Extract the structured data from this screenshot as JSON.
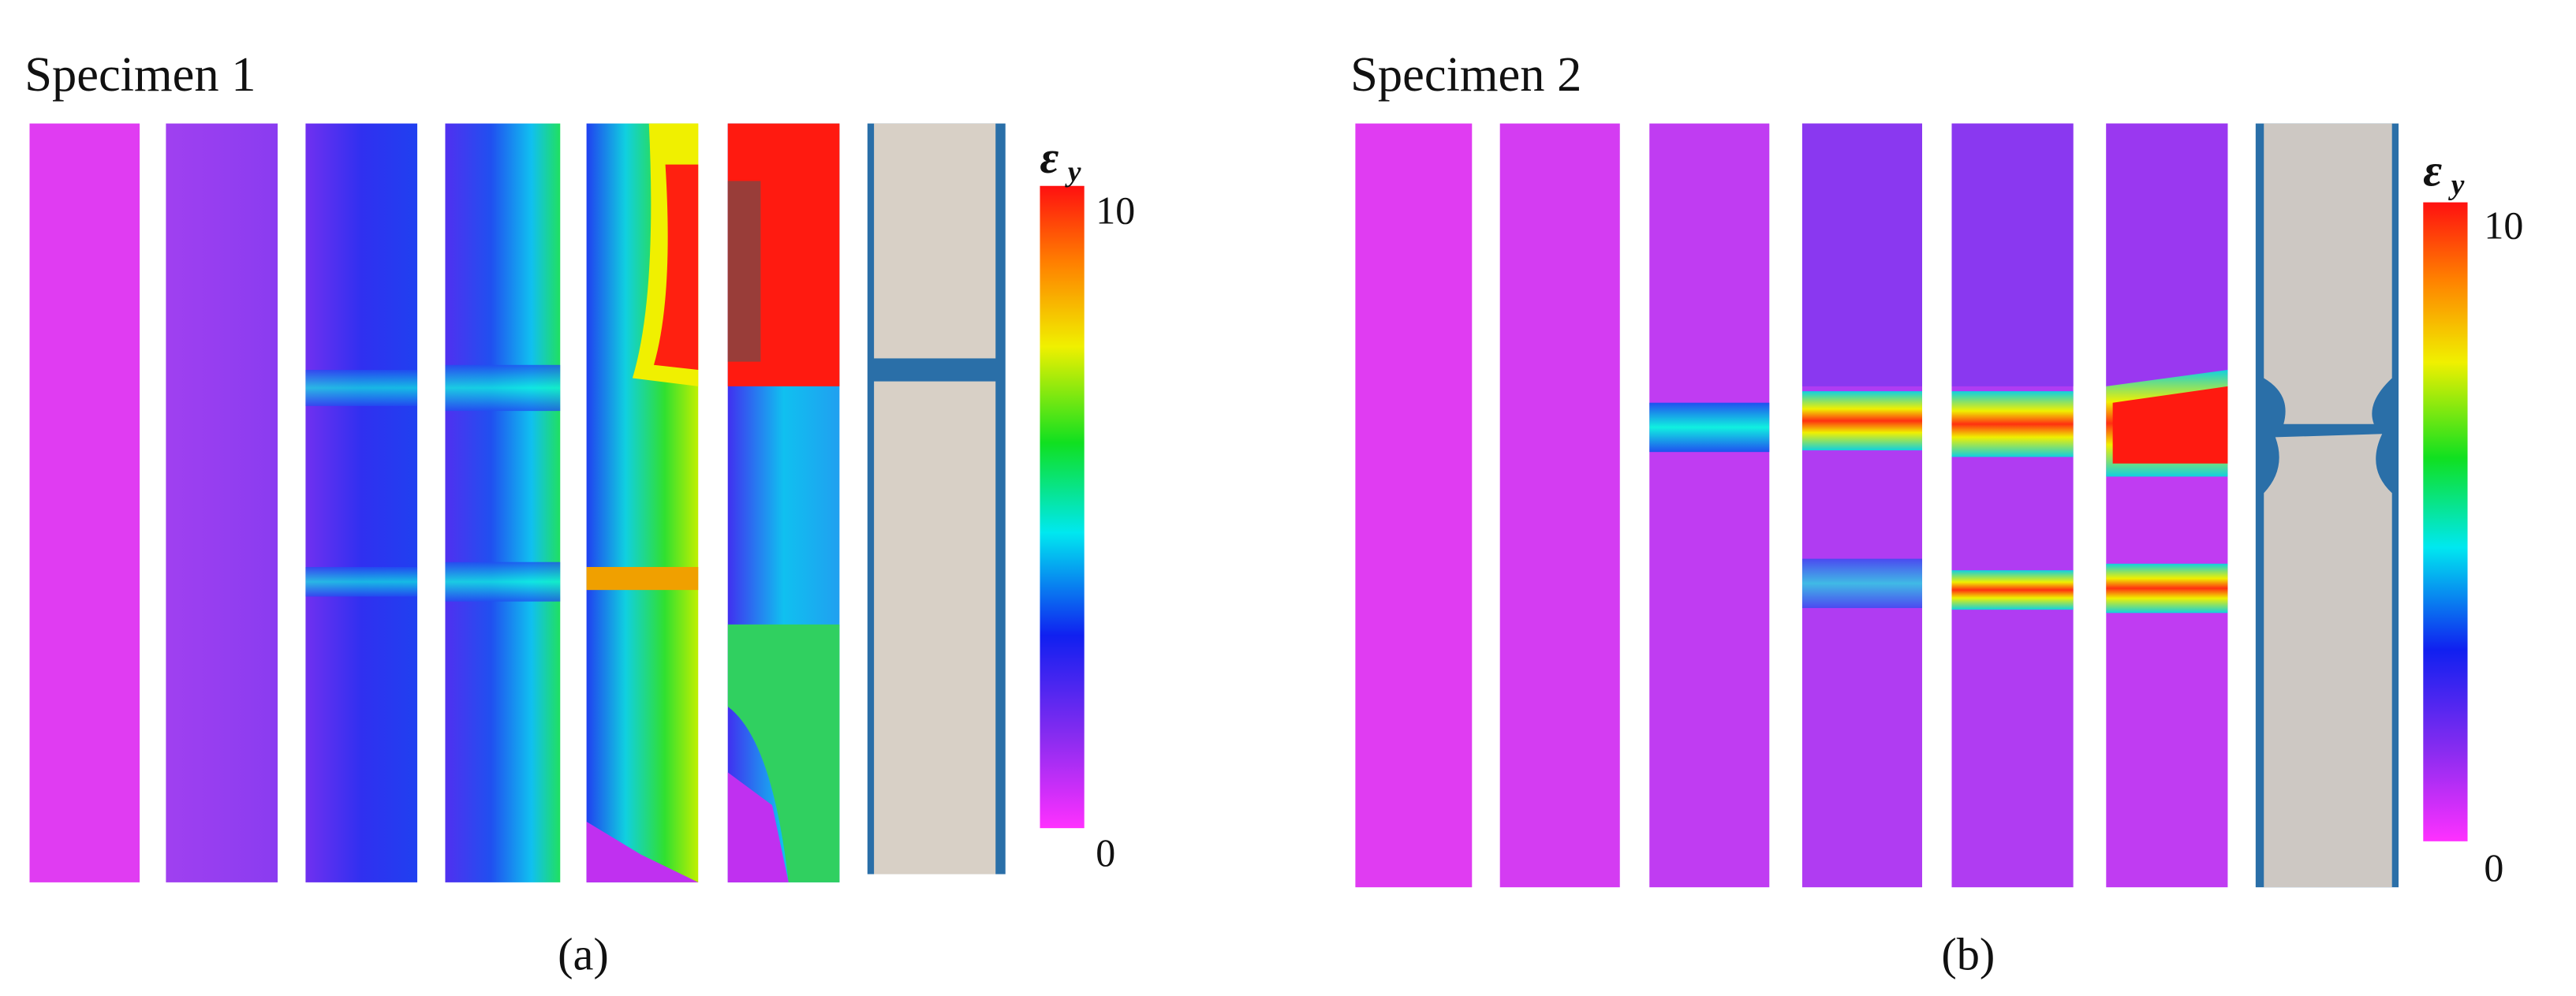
{
  "panels": [
    {
      "title": "Specimen 1",
      "colorbar": {
        "symbol": "ε",
        "subscript": "y",
        "max": 10,
        "min": 0
      },
      "label": "(a)"
    },
    {
      "title": "Specimen 2",
      "colorbar": {
        "symbol": "ε",
        "subscript": "y",
        "max": 10,
        "min": 0
      },
      "label": "(b)"
    }
  ]
}
